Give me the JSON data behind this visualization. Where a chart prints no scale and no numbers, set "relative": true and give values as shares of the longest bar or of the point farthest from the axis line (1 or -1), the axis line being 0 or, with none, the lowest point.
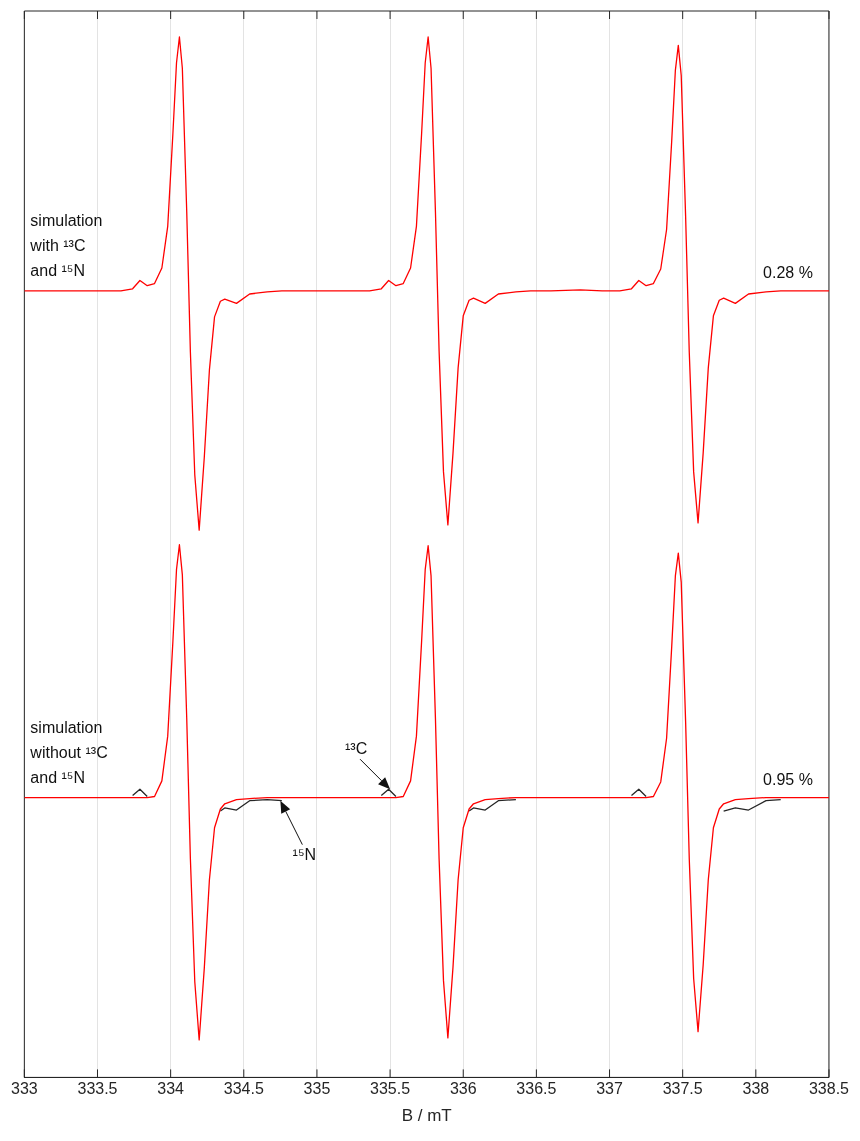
{
  "chart_data": {
    "type": "line",
    "relative": true,
    "xlabel": "B / mT",
    "xlim": [
      333,
      338.5
    ],
    "xticks": [
      333,
      333.5,
      334,
      334.5,
      335,
      335.5,
      336,
      336.5,
      337,
      337.5,
      338,
      338.5
    ],
    "grid": "x",
    "marker": "none",
    "line_style": "solid",
    "x": [
      333.0,
      333.3,
      333.6,
      333.66,
      333.74,
      333.79,
      333.84,
      333.89,
      333.94,
      333.98,
      334.015,
      334.04,
      334.06,
      334.08,
      334.11,
      334.135,
      334.165,
      334.195,
      334.23,
      334.265,
      334.3,
      334.34,
      334.37,
      334.45,
      334.54,
      334.66,
      334.76,
      334.9,
      335.1,
      335.3,
      335.36,
      335.44,
      335.49,
      335.54,
      335.59,
      335.64,
      335.68,
      335.715,
      335.74,
      335.76,
      335.78,
      335.81,
      335.835,
      335.865,
      335.895,
      335.93,
      335.965,
      336.0,
      336.04,
      336.07,
      336.15,
      336.24,
      336.36,
      336.46,
      336.6,
      336.8,
      336.95,
      337.07,
      337.15,
      337.2,
      337.25,
      337.3,
      337.35,
      337.39,
      337.425,
      337.45,
      337.47,
      337.49,
      337.52,
      337.545,
      337.575,
      337.605,
      337.64,
      337.675,
      337.71,
      337.75,
      337.78,
      337.86,
      337.95,
      338.07,
      338.17,
      338.3,
      338.5
    ],
    "series": [
      {
        "name": "simulation with ¹³C and ¹⁵N",
        "color": "#ff0000",
        "values": [
          0.756,
          0.756,
          0.756,
          0.756,
          0.758,
          0.766,
          0.761,
          0.763,
          0.778,
          0.818,
          0.906,
          0.975,
          1.0,
          0.97,
          0.832,
          0.697,
          0.579,
          0.526,
          0.596,
          0.68,
          0.731,
          0.746,
          0.748,
          0.744,
          0.753,
          0.755,
          0.756,
          0.756,
          0.756,
          0.756,
          0.756,
          0.758,
          0.766,
          0.761,
          0.763,
          0.778,
          0.818,
          0.906,
          0.975,
          1.0,
          0.97,
          0.832,
          0.698,
          0.582,
          0.531,
          0.6,
          0.682,
          0.732,
          0.747,
          0.749,
          0.744,
          0.753,
          0.755,
          0.756,
          0.756,
          0.757,
          0.756,
          0.756,
          0.758,
          0.766,
          0.761,
          0.763,
          0.777,
          0.815,
          0.9,
          0.968,
          0.992,
          0.963,
          0.828,
          0.697,
          0.582,
          0.533,
          0.6,
          0.682,
          0.732,
          0.747,
          0.749,
          0.744,
          0.753,
          0.755,
          0.756,
          0.756,
          0.756
        ]
      },
      {
        "color": "#262626",
        "values": [
          null,
          null,
          null,
          null,
          0.271,
          0.277,
          0.27,
          null,
          null,
          null,
          null,
          null,
          null,
          null,
          null,
          null,
          null,
          null,
          null,
          null,
          null,
          0.256,
          0.259,
          0.257,
          0.266,
          0.267,
          0.266,
          null,
          null,
          null,
          null,
          0.271,
          0.277,
          0.27,
          null,
          null,
          null,
          null,
          null,
          null,
          null,
          null,
          null,
          null,
          null,
          null,
          null,
          null,
          0.256,
          0.259,
          0.257,
          0.266,
          0.267,
          null,
          null,
          null,
          null,
          null,
          0.271,
          0.277,
          0.27,
          null,
          null,
          null,
          null,
          null,
          null,
          null,
          null,
          null,
          null,
          null,
          null,
          null,
          null,
          null,
          0.256,
          0.259,
          0.257,
          0.266,
          0.267,
          null,
          null
        ]
      },
      {
        "name": "simulation without ¹³C and ¹⁵N",
        "color": "#ff0000",
        "values": [
          0.269,
          0.269,
          0.269,
          0.269,
          0.269,
          0.269,
          0.269,
          0.27,
          0.285,
          0.328,
          0.418,
          0.488,
          0.512,
          0.483,
          0.345,
          0.21,
          0.092,
          0.036,
          0.105,
          0.19,
          0.24,
          0.258,
          0.263,
          0.267,
          0.268,
          0.269,
          0.269,
          0.269,
          0.269,
          0.269,
          0.269,
          0.269,
          0.269,
          0.269,
          0.27,
          0.285,
          0.328,
          0.418,
          0.488,
          0.511,
          0.482,
          0.345,
          0.21,
          0.093,
          0.038,
          0.106,
          0.19,
          0.24,
          0.258,
          0.263,
          0.267,
          0.268,
          0.269,
          0.269,
          0.269,
          0.269,
          0.269,
          0.269,
          0.269,
          0.269,
          0.269,
          0.27,
          0.284,
          0.326,
          0.414,
          0.482,
          0.504,
          0.476,
          0.342,
          0.21,
          0.095,
          0.044,
          0.108,
          0.19,
          0.24,
          0.258,
          0.263,
          0.267,
          0.268,
          0.269,
          0.269,
          0.269,
          0.269
        ]
      }
    ],
    "annotations": [
      {
        "text": "0.28 %",
        "x": 338.22,
        "y": 0.756
      },
      {
        "text": "0.95 %",
        "x": 338.22,
        "y": 0.269
      },
      {
        "text": "¹³C",
        "x": 335.5,
        "y": 0.277
      },
      {
        "text": "¹⁵N",
        "x": 334.75,
        "y": 0.266
      }
    ]
  }
}
